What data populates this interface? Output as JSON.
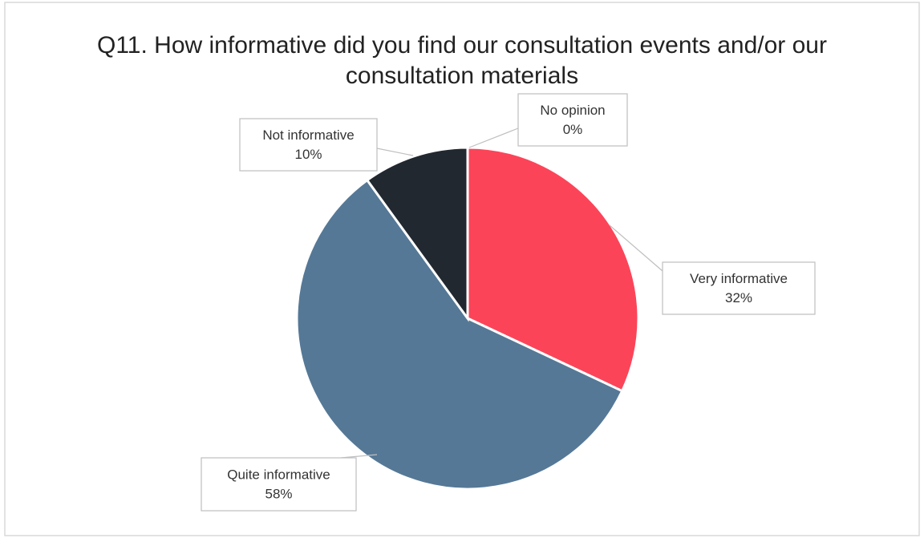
{
  "chart_data": {
    "type": "pie",
    "title": "Q11. How informative did you find our consultation events and/or our consultation materials",
    "categories": [
      "Very informative",
      "Quite informative",
      "Not informative",
      "No opinion"
    ],
    "values": [
      32,
      58,
      10,
      0
    ],
    "value_labels": [
      "32%",
      "58%",
      "10%",
      "0%"
    ],
    "colors": [
      "#fc4459",
      "#557896",
      "#212830",
      "#a5a5a5"
    ]
  }
}
